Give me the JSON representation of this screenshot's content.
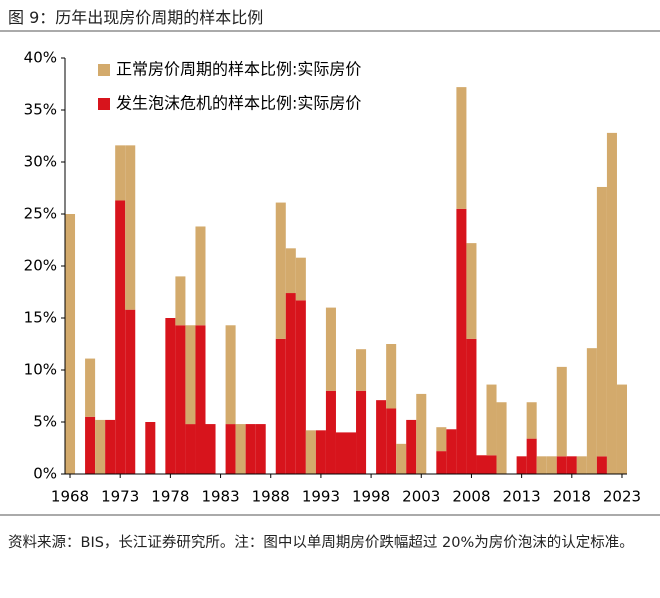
{
  "chart_data": {
    "type": "stacked_bar",
    "title": "图 9：历年出现房价周期的样本比例",
    "note": "资料来源：BIS，长江证券研究所。注：图中以单周期房价跌幅超过 20%为房价泡沫的认定标准。",
    "categories": [
      "1968",
      null,
      null,
      null,
      null,
      "1973",
      null,
      null,
      null,
      null,
      "1978",
      null,
      null,
      null,
      null,
      "1983",
      null,
      null,
      null,
      null,
      "1988",
      null,
      null,
      null,
      null,
      "1993",
      null,
      null,
      null,
      null,
      "1998",
      null,
      null,
      null,
      null,
      "2003",
      null,
      null,
      null,
      null,
      "2008",
      null,
      null,
      null,
      null,
      "2013",
      null,
      null,
      null,
      null,
      "2018",
      null,
      null,
      null,
      null,
      "2023"
    ],
    "series": [
      {
        "name": "发生泡沫危机的样本比例:实际房价",
        "color": "#d7141c",
        "values": [
          0,
          0,
          5.5,
          0,
          5.2,
          26.3,
          15.8,
          0,
          5.0,
          0,
          15.0,
          14.3,
          4.8,
          14.3,
          4.8,
          0,
          4.8,
          0,
          4.8,
          4.8,
          0,
          13.0,
          17.4,
          16.7,
          0,
          4.2,
          8.0,
          4.0,
          4.0,
          8.0,
          0,
          7.1,
          6.3,
          0,
          5.2,
          0,
          0,
          2.2,
          4.3,
          25.5,
          13.0,
          1.8,
          1.8,
          0,
          0,
          1.7,
          3.4,
          0,
          0,
          1.7,
          1.7,
          0,
          0,
          1.7,
          0,
          0
        ]
      },
      {
        "name": "正常房价周期的样本比例:实际房价",
        "color": "#d3aa6c",
        "values": [
          25,
          0,
          5.6,
          5.2,
          0,
          5.3,
          15.8,
          0,
          0,
          0,
          0,
          4.7,
          9.5,
          9.5,
          0,
          0,
          9.5,
          4.8,
          0,
          0,
          0,
          13.1,
          4.3,
          4.1,
          4.2,
          0,
          8.0,
          0,
          0,
          4.0,
          0,
          0,
          6.2,
          2.9,
          0,
          7.7,
          0,
          2.3,
          0,
          11.7,
          9.2,
          0,
          6.8,
          6.9,
          0,
          0,
          3.5,
          1.7,
          1.7,
          8.6,
          0,
          1.7,
          12.1,
          25.9,
          32.8,
          8.6
        ]
      }
    ],
    "ylim": [
      0,
      40
    ],
    "yticks": [
      {
        "value": 0,
        "label": "0%"
      },
      {
        "value": 5,
        "label": "5%"
      },
      {
        "value": 10,
        "label": "10%"
      },
      {
        "value": 15,
        "label": "15%"
      },
      {
        "value": 20,
        "label": "20%"
      },
      {
        "value": 25,
        "label": "25%"
      },
      {
        "value": 30,
        "label": "30%"
      },
      {
        "value": 35,
        "label": "35%"
      },
      {
        "value": 40,
        "label": "40%"
      }
    ],
    "legend": "top-left",
    "grid": false
  }
}
